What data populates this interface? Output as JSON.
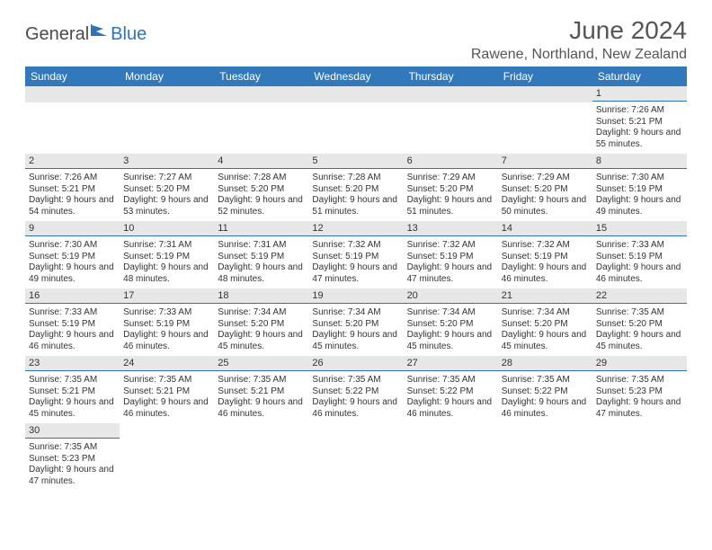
{
  "logo": {
    "text1": "General",
    "text2": "Blue"
  },
  "title": {
    "month": "June 2024",
    "location": "Rawene, Northland, New Zealand"
  },
  "colors": {
    "header_bg": "#3279bb",
    "header_text": "#ffffff",
    "daynum_bg": "#e7e7e7",
    "divider": "#2b74b8",
    "text": "#333333",
    "logo_gray": "#4a4a4a",
    "logo_blue": "#2b74b8"
  },
  "day_names": [
    "Sunday",
    "Monday",
    "Tuesday",
    "Wednesday",
    "Thursday",
    "Friday",
    "Saturday"
  ],
  "weeks": [
    [
      {
        "blank": true
      },
      {
        "blank": true
      },
      {
        "blank": true
      },
      {
        "blank": true
      },
      {
        "blank": true
      },
      {
        "blank": true
      },
      {
        "num": "1",
        "sunrise": "Sunrise: 7:26 AM",
        "sunset": "Sunset: 5:21 PM",
        "daylight": "Daylight: 9 hours and 55 minutes."
      }
    ],
    [
      {
        "num": "2",
        "sunrise": "Sunrise: 7:26 AM",
        "sunset": "Sunset: 5:21 PM",
        "daylight": "Daylight: 9 hours and 54 minutes."
      },
      {
        "num": "3",
        "sunrise": "Sunrise: 7:27 AM",
        "sunset": "Sunset: 5:20 PM",
        "daylight": "Daylight: 9 hours and 53 minutes."
      },
      {
        "num": "4",
        "sunrise": "Sunrise: 7:28 AM",
        "sunset": "Sunset: 5:20 PM",
        "daylight": "Daylight: 9 hours and 52 minutes."
      },
      {
        "num": "5",
        "sunrise": "Sunrise: 7:28 AM",
        "sunset": "Sunset: 5:20 PM",
        "daylight": "Daylight: 9 hours and 51 minutes."
      },
      {
        "num": "6",
        "sunrise": "Sunrise: 7:29 AM",
        "sunset": "Sunset: 5:20 PM",
        "daylight": "Daylight: 9 hours and 51 minutes."
      },
      {
        "num": "7",
        "sunrise": "Sunrise: 7:29 AM",
        "sunset": "Sunset: 5:20 PM",
        "daylight": "Daylight: 9 hours and 50 minutes."
      },
      {
        "num": "8",
        "sunrise": "Sunrise: 7:30 AM",
        "sunset": "Sunset: 5:19 PM",
        "daylight": "Daylight: 9 hours and 49 minutes."
      }
    ],
    [
      {
        "num": "9",
        "sunrise": "Sunrise: 7:30 AM",
        "sunset": "Sunset: 5:19 PM",
        "daylight": "Daylight: 9 hours and 49 minutes."
      },
      {
        "num": "10",
        "sunrise": "Sunrise: 7:31 AM",
        "sunset": "Sunset: 5:19 PM",
        "daylight": "Daylight: 9 hours and 48 minutes."
      },
      {
        "num": "11",
        "sunrise": "Sunrise: 7:31 AM",
        "sunset": "Sunset: 5:19 PM",
        "daylight": "Daylight: 9 hours and 48 minutes."
      },
      {
        "num": "12",
        "sunrise": "Sunrise: 7:32 AM",
        "sunset": "Sunset: 5:19 PM",
        "daylight": "Daylight: 9 hours and 47 minutes."
      },
      {
        "num": "13",
        "sunrise": "Sunrise: 7:32 AM",
        "sunset": "Sunset: 5:19 PM",
        "daylight": "Daylight: 9 hours and 47 minutes."
      },
      {
        "num": "14",
        "sunrise": "Sunrise: 7:32 AM",
        "sunset": "Sunset: 5:19 PM",
        "daylight": "Daylight: 9 hours and 46 minutes."
      },
      {
        "num": "15",
        "sunrise": "Sunrise: 7:33 AM",
        "sunset": "Sunset: 5:19 PM",
        "daylight": "Daylight: 9 hours and 46 minutes."
      }
    ],
    [
      {
        "num": "16",
        "sunrise": "Sunrise: 7:33 AM",
        "sunset": "Sunset: 5:19 PM",
        "daylight": "Daylight: 9 hours and 46 minutes."
      },
      {
        "num": "17",
        "sunrise": "Sunrise: 7:33 AM",
        "sunset": "Sunset: 5:19 PM",
        "daylight": "Daylight: 9 hours and 46 minutes."
      },
      {
        "num": "18",
        "sunrise": "Sunrise: 7:34 AM",
        "sunset": "Sunset: 5:20 PM",
        "daylight": "Daylight: 9 hours and 45 minutes."
      },
      {
        "num": "19",
        "sunrise": "Sunrise: 7:34 AM",
        "sunset": "Sunset: 5:20 PM",
        "daylight": "Daylight: 9 hours and 45 minutes."
      },
      {
        "num": "20",
        "sunrise": "Sunrise: 7:34 AM",
        "sunset": "Sunset: 5:20 PM",
        "daylight": "Daylight: 9 hours and 45 minutes."
      },
      {
        "num": "21",
        "sunrise": "Sunrise: 7:34 AM",
        "sunset": "Sunset: 5:20 PM",
        "daylight": "Daylight: 9 hours and 45 minutes."
      },
      {
        "num": "22",
        "sunrise": "Sunrise: 7:35 AM",
        "sunset": "Sunset: 5:20 PM",
        "daylight": "Daylight: 9 hours and 45 minutes."
      }
    ],
    [
      {
        "num": "23",
        "sunrise": "Sunrise: 7:35 AM",
        "sunset": "Sunset: 5:21 PM",
        "daylight": "Daylight: 9 hours and 45 minutes."
      },
      {
        "num": "24",
        "sunrise": "Sunrise: 7:35 AM",
        "sunset": "Sunset: 5:21 PM",
        "daylight": "Daylight: 9 hours and 46 minutes."
      },
      {
        "num": "25",
        "sunrise": "Sunrise: 7:35 AM",
        "sunset": "Sunset: 5:21 PM",
        "daylight": "Daylight: 9 hours and 46 minutes."
      },
      {
        "num": "26",
        "sunrise": "Sunrise: 7:35 AM",
        "sunset": "Sunset: 5:22 PM",
        "daylight": "Daylight: 9 hours and 46 minutes."
      },
      {
        "num": "27",
        "sunrise": "Sunrise: 7:35 AM",
        "sunset": "Sunset: 5:22 PM",
        "daylight": "Daylight: 9 hours and 46 minutes."
      },
      {
        "num": "28",
        "sunrise": "Sunrise: 7:35 AM",
        "sunset": "Sunset: 5:22 PM",
        "daylight": "Daylight: 9 hours and 46 minutes."
      },
      {
        "num": "29",
        "sunrise": "Sunrise: 7:35 AM",
        "sunset": "Sunset: 5:23 PM",
        "daylight": "Daylight: 9 hours and 47 minutes."
      }
    ],
    [
      {
        "num": "30",
        "sunrise": "Sunrise: 7:35 AM",
        "sunset": "Sunset: 5:23 PM",
        "daylight": "Daylight: 9 hours and 47 minutes."
      },
      {
        "blank": true
      },
      {
        "blank": true
      },
      {
        "blank": true
      },
      {
        "blank": true
      },
      {
        "blank": true
      },
      {
        "blank": true
      }
    ]
  ]
}
